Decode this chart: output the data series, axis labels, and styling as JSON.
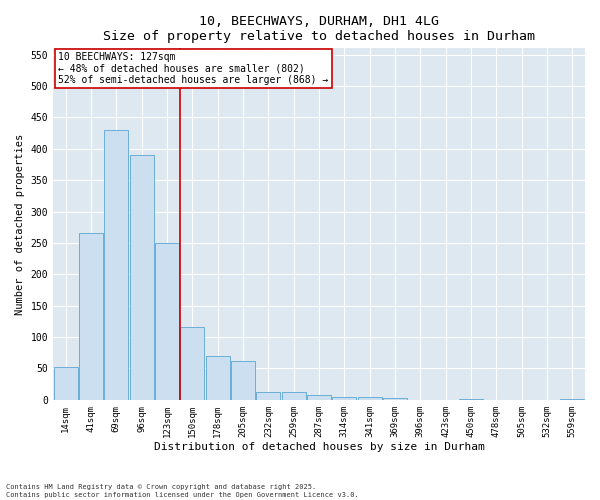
{
  "title1": "10, BEECHWAYS, DURHAM, DH1 4LG",
  "title2": "Size of property relative to detached houses in Durham",
  "xlabel": "Distribution of detached houses by size in Durham",
  "ylabel": "Number of detached properties",
  "categories": [
    "14sqm",
    "41sqm",
    "69sqm",
    "96sqm",
    "123sqm",
    "150sqm",
    "178sqm",
    "205sqm",
    "232sqm",
    "259sqm",
    "287sqm",
    "314sqm",
    "341sqm",
    "369sqm",
    "396sqm",
    "423sqm",
    "450sqm",
    "478sqm",
    "505sqm",
    "532sqm",
    "559sqm"
  ],
  "values": [
    52,
    265,
    430,
    390,
    250,
    116,
    70,
    62,
    13,
    13,
    8,
    5,
    5,
    3,
    0,
    0,
    2,
    0,
    0,
    0,
    1
  ],
  "bar_color": "#ccdff0",
  "bar_edge_color": "#6aaed6",
  "vline_color": "#cc0000",
  "vline_bin_index": 4,
  "annotation_title": "10 BEECHWAYS: 127sqm",
  "annotation_line1": "← 48% of detached houses are smaller (802)",
  "annotation_line2": "52% of semi-detached houses are larger (868) →",
  "annotation_box_facecolor": "#ffffff",
  "annotation_box_edgecolor": "#cc0000",
  "ylim": [
    0,
    560
  ],
  "yticks": [
    0,
    50,
    100,
    150,
    200,
    250,
    300,
    350,
    400,
    450,
    500,
    550
  ],
  "fig_facecolor": "#ffffff",
  "ax_facecolor": "#dde8f0",
  "grid_color": "#ffffff",
  "footer1": "Contains HM Land Registry data © Crown copyright and database right 2025.",
  "footer2": "Contains public sector information licensed under the Open Government Licence v3.0."
}
